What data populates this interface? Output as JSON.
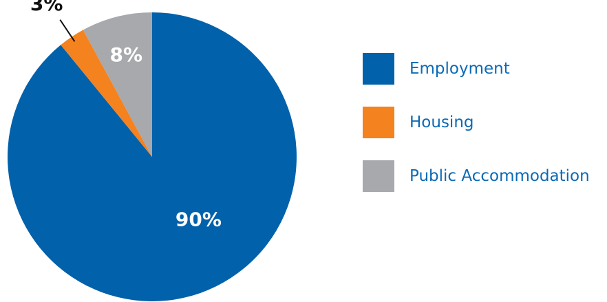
{
  "chart_data": {
    "type": "pie",
    "categories": [
      "Employment",
      "Housing",
      "Public Accommodation"
    ],
    "values": [
      90,
      3,
      8
    ],
    "data_labels": [
      "90%",
      "3%",
      "8%"
    ],
    "colors": [
      "#0161ab",
      "#f4821f",
      "#a7a9ac"
    ],
    "label_colors": [
      "#ffffff",
      "#111111",
      "#ffffff"
    ],
    "start_angle_deg": 0,
    "direction": "clockwise",
    "legend_position": "right"
  },
  "legend": {
    "items": [
      {
        "label": "Employment",
        "color": "#0161ab"
      },
      {
        "label": "Housing",
        "color": "#f4821f"
      },
      {
        "label": "Public Accommodation",
        "color": "#a7a9ac"
      }
    ]
  }
}
